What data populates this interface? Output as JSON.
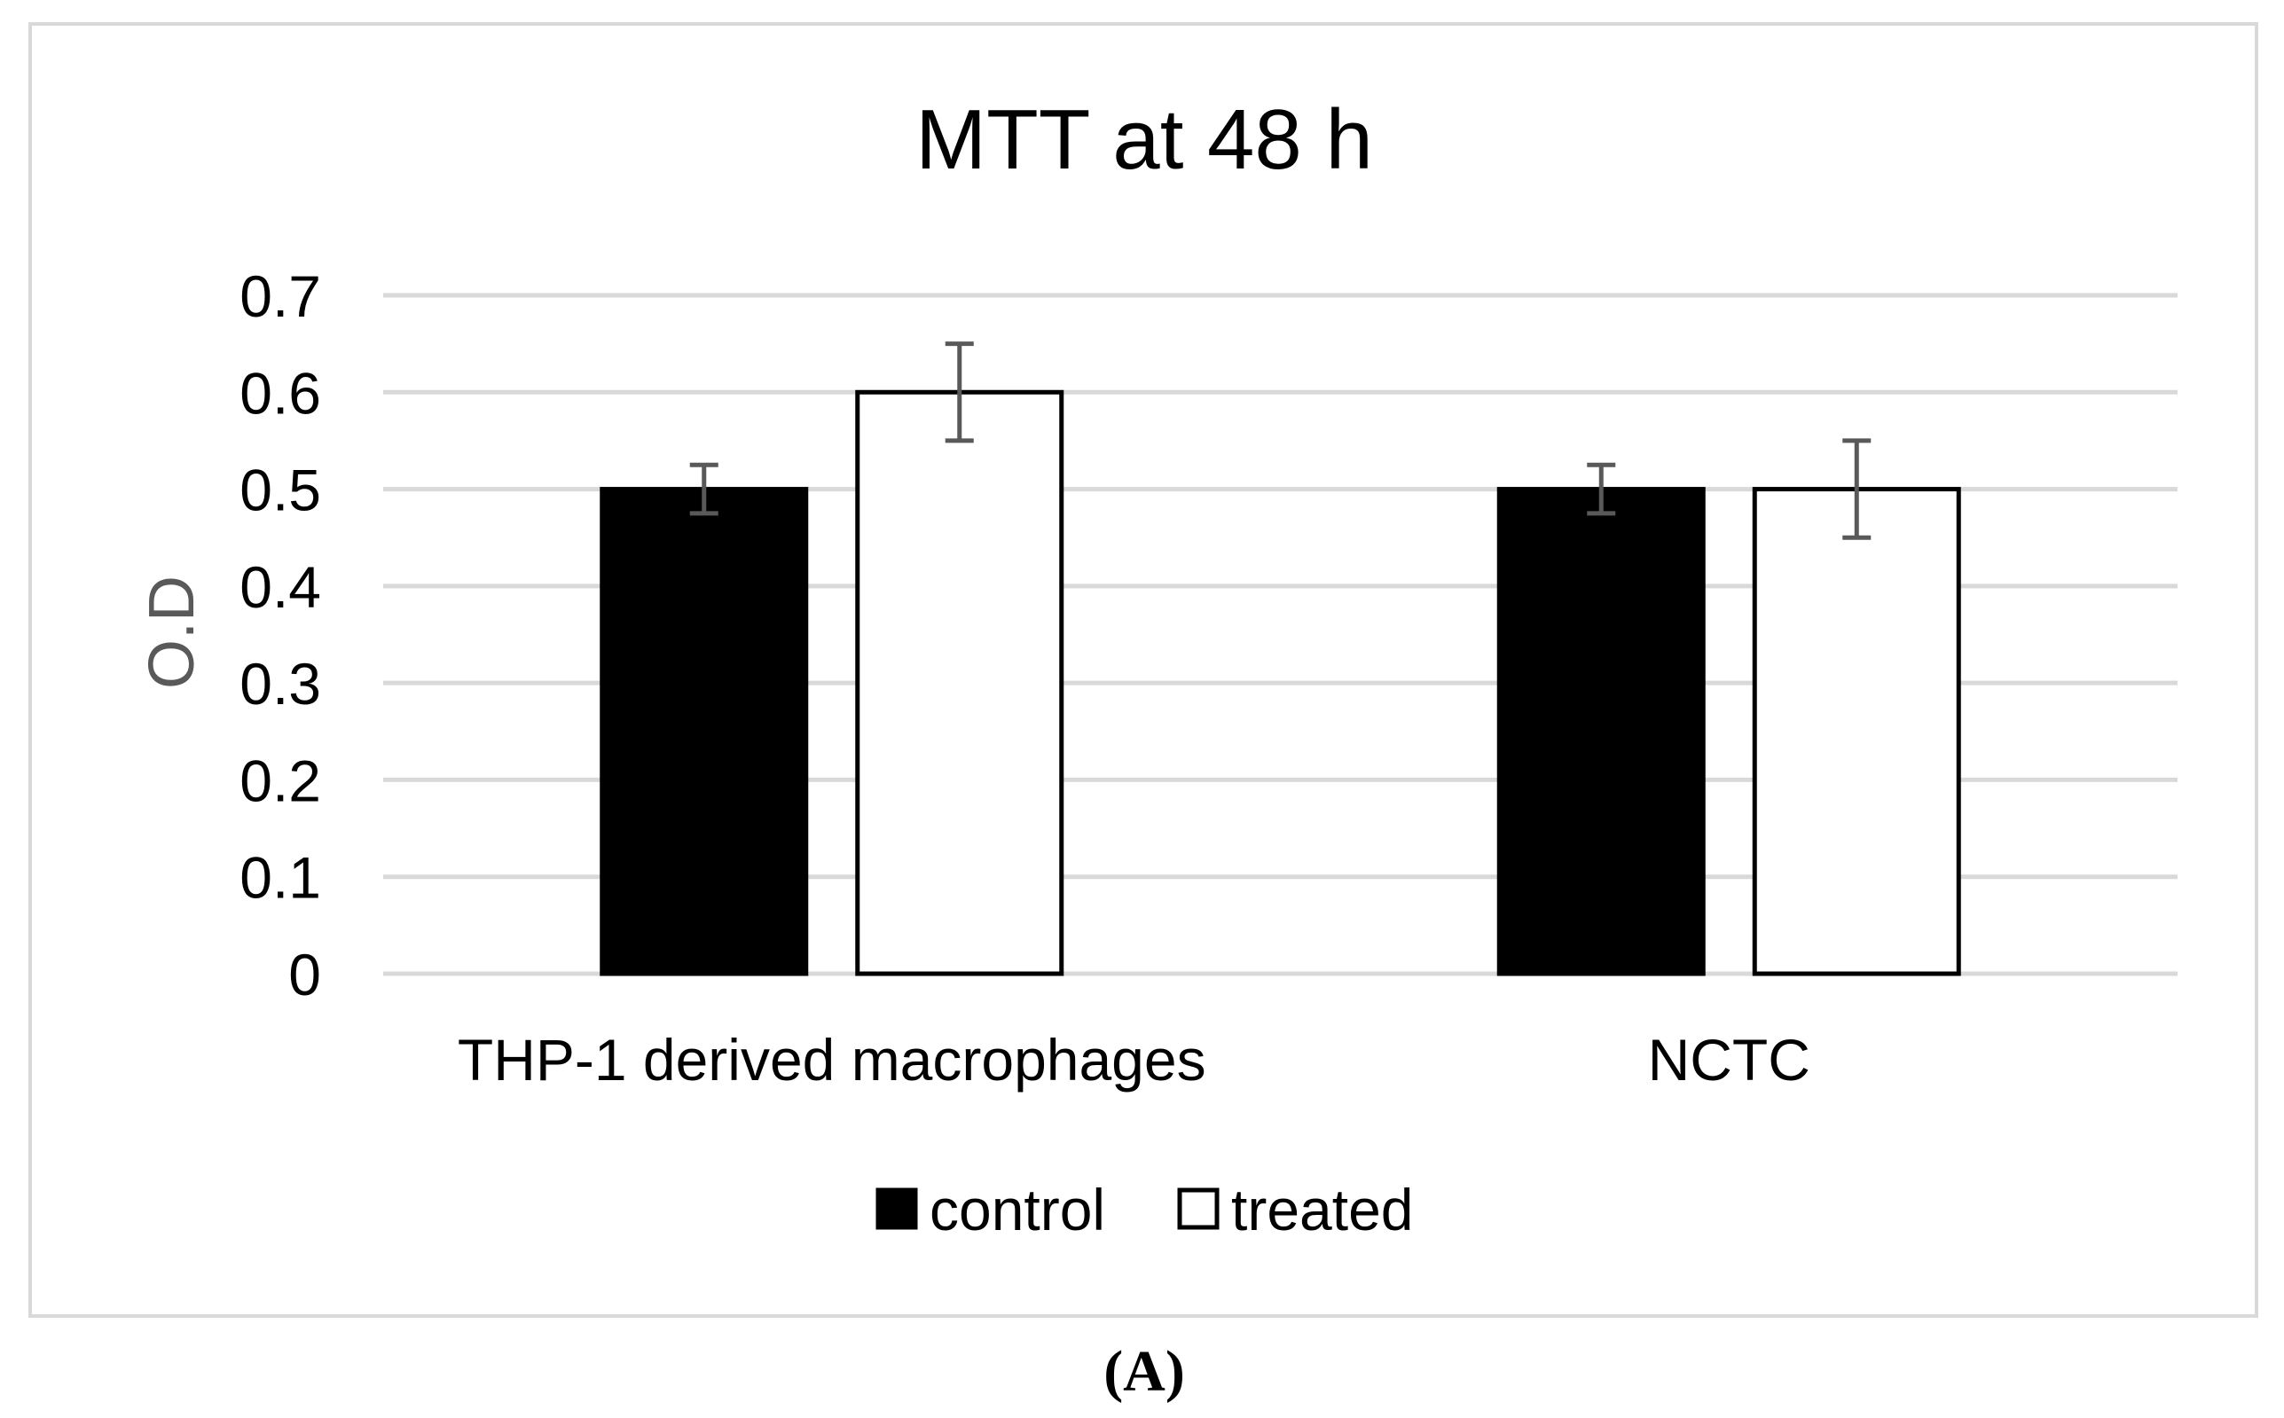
{
  "chart_data": {
    "type": "bar",
    "title": "MTT at 48 h",
    "xlabel": "",
    "ylabel": "O.D",
    "ylim": [
      0,
      0.7
    ],
    "ytick_step": 0.1,
    "yticks": [
      "0",
      "0.1",
      "0.2",
      "0.3",
      "0.4",
      "0.5",
      "0.6",
      "0.7"
    ],
    "categories": [
      "THP-1 derived macrophages",
      "NCTC"
    ],
    "series": [
      {
        "name": "control",
        "values": [
          0.5,
          0.5
        ],
        "errors": [
          0.025,
          0.025
        ],
        "fill": "#000000"
      },
      {
        "name": "treated",
        "values": [
          0.6,
          0.5
        ],
        "errors": [
          0.05,
          0.05
        ],
        "fill": "#ffffff"
      }
    ],
    "grid": true,
    "legend_position": "bottom"
  },
  "colors": {
    "frame": "#d9d9d9",
    "gridline": "#d9d9d9",
    "bar_outline": "#000000",
    "error_bar": "#595959",
    "text": "#000000",
    "ylabel": "#595959"
  },
  "panel_label": "(A)"
}
